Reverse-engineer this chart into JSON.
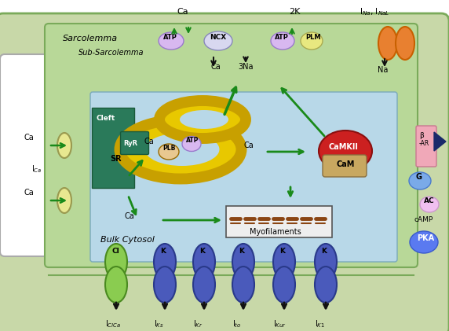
{
  "fig_width": 5.72,
  "fig_height": 4.21,
  "dpi": 100,
  "bg_outer_color": "#c8d8a8",
  "bg_outer_edge": "#7aaa5a",
  "cytosol_color": "#b8d8e8",
  "cytosol_edge": "#7aaabb",
  "sarcolemma_label": "Sarcolemma",
  "subsarcolemma_label": "Sub-Sarcolemma",
  "bulk_cytosol_label": "Bulk Cytosol",
  "cleft_label": "Cleft",
  "sr_label": "SR",
  "sr_color": "#e8c800",
  "sr_edge": "#c8a000",
  "cleft_color": "#2a7a5a",
  "cleft_edge": "#1a5a3a",
  "atp_color": "#d8b8f0",
  "atp_edge": "#9a7acc",
  "ncx_color": "#d8d8f0",
  "ncx_edge": "#8888bb",
  "plm_color": "#e8e880",
  "plm_edge": "#aaaa50",
  "na_channel_color": "#e88030",
  "na_channel_edge": "#c86000",
  "camkii_color": "#cc2020",
  "camkii_edge": "#8a1010",
  "cam_color": "#c8a860",
  "cam_edge": "#8a7040",
  "pka_color": "#5a7af0",
  "pka_edge": "#3a5acc",
  "g_color": "#7aaae8",
  "g_edge": "#4a7acc",
  "ac_color": "#f0c0f0",
  "ac_edge": "#cc9acc",
  "bar_color": "#f0a8b8",
  "bar_edge": "#c87890",
  "plb_color": "#e8c890",
  "plb_edge": "#9a6a00",
  "ch_yellow_color": "#e8e890",
  "ch_yellow_edge": "#9a9a50",
  "cl_channel_color": "#8acc50",
  "cl_channel_edge": "#4a8a20",
  "k_channel_color": "#4a5abb",
  "k_channel_edge": "#2a3a8a",
  "arrow_green": "#1a8a1a",
  "arrow_black": "#111111"
}
